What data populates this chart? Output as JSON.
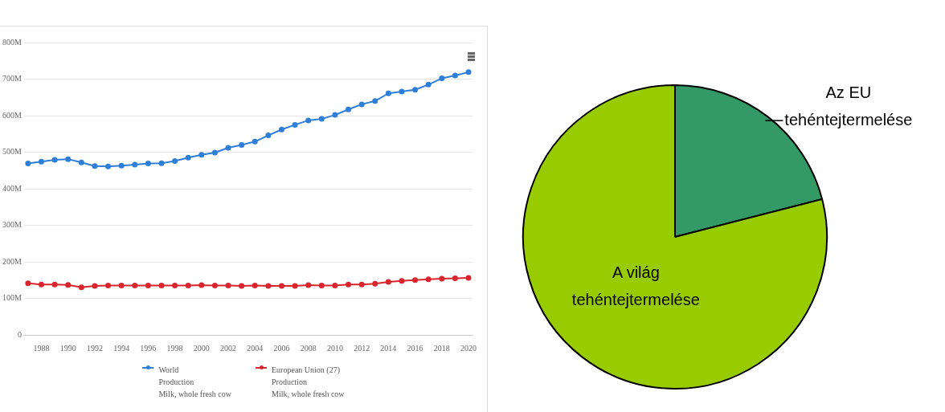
{
  "chart_data": [
    {
      "type": "line",
      "x": [
        1987,
        1988,
        1989,
        1990,
        1991,
        1992,
        1993,
        1994,
        1995,
        1996,
        1997,
        1998,
        1999,
        2000,
        2001,
        2002,
        2003,
        2004,
        2005,
        2006,
        2007,
        2008,
        2009,
        2010,
        2011,
        2012,
        2013,
        2014,
        2015,
        2016,
        2017,
        2018,
        2019,
        2020
      ],
      "series": [
        {
          "name": "World\nProduction\nMilk, whole fresh cow",
          "color": "#2f7ed8",
          "values": [
            469,
            474,
            479,
            481,
            472,
            462,
            461,
            463,
            466,
            469,
            470,
            476,
            485,
            493,
            499,
            512,
            520,
            529,
            546,
            562,
            575,
            587,
            591,
            602,
            617,
            631,
            640,
            661,
            666,
            671,
            685,
            702,
            710,
            719
          ]
        },
        {
          "name": "European Union (27)\nProduction\nMilk, whole fresh cow",
          "color": "#d9262e",
          "values": [
            141,
            138,
            138,
            137,
            130,
            134,
            135,
            135,
            135,
            135,
            135,
            135,
            135,
            136,
            135,
            135,
            134,
            135,
            134,
            134,
            134,
            136,
            135,
            135,
            138,
            138,
            140,
            145,
            148,
            150,
            152,
            154,
            155,
            156
          ]
        }
      ],
      "xlim": [
        1986.7,
        2020.3
      ],
      "xticks": [
        1988,
        1990,
        1992,
        1994,
        1996,
        1998,
        2000,
        2002,
        2004,
        2006,
        2008,
        2010,
        2012,
        2014,
        2016,
        2018,
        2020
      ],
      "ylim": [
        0,
        800
      ],
      "yticks": [
        0,
        {
          "value": 100,
          "label": "100M"
        },
        {
          "value": 200,
          "label": "200M"
        },
        {
          "value": 300,
          "label": "300M"
        },
        {
          "value": 400,
          "label": "400M"
        },
        {
          "value": 500,
          "label": "500M"
        },
        {
          "value": 600,
          "label": "600M"
        },
        {
          "value": 700,
          "label": "700M"
        },
        {
          "value": 800,
          "label": "800M"
        }
      ],
      "grid": "y",
      "legend": "bottom",
      "marker": "circle",
      "line_style": "solid"
    },
    {
      "type": "pie",
      "categories": [
        "Az EU\ntehéntejtermelése",
        "A világ\ntehéntejtermelése"
      ],
      "values": [
        21,
        79
      ],
      "colors": [
        "#339966",
        "#99cc00"
      ]
    }
  ]
}
